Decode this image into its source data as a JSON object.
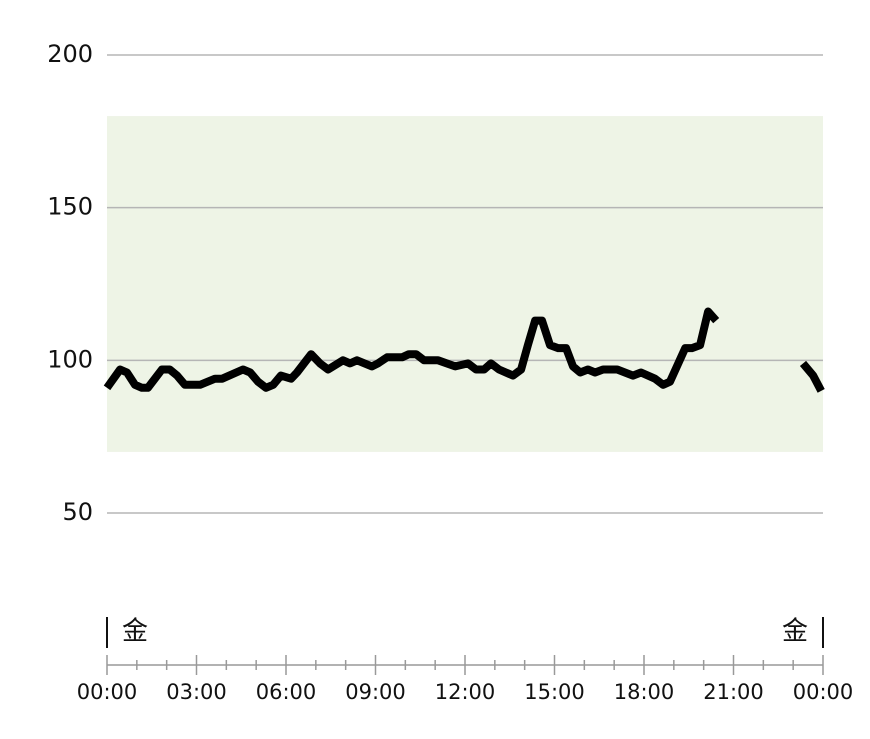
{
  "chart_data": {
    "type": "line",
    "x": [
      0,
      0.44,
      0.67,
      0.94,
      1.17,
      1.37,
      1.84,
      2.1,
      2.35,
      2.61,
      3.12,
      3.62,
      3.86,
      4.56,
      4.8,
      5.06,
      5.33,
      5.57,
      5.83,
      6.17,
      6.37,
      6.84,
      7.14,
      7.41,
      7.91,
      8.15,
      8.38,
      8.88,
      9.08,
      9.39,
      9.89,
      10.12,
      10.36,
      10.63,
      11.1,
      11.67,
      12.1,
      12.37,
      12.64,
      12.87,
      13.14,
      13.61,
      13.88,
      14.11,
      14.35,
      14.58,
      14.85,
      15.12,
      15.39,
      15.62,
      15.86,
      16.12,
      16.36,
      16.63,
      17.1,
      17.63,
      17.9,
      18.37,
      18.64,
      18.87,
      19.38,
      19.61,
      19.88,
      20.15,
      20.42,
      22,
      23.33,
      23.67,
      23.94
    ],
    "series": [
      {
        "color": "#000000",
        "values": [
          91,
          97,
          96,
          92,
          91,
          91,
          97,
          97,
          95,
          92,
          92,
          94,
          94,
          97,
          96,
          93,
          91,
          92,
          95,
          94,
          96,
          102,
          99,
          97,
          100,
          99,
          100,
          98,
          99,
          101,
          101,
          102,
          102,
          100,
          100,
          98,
          99,
          97,
          97,
          99,
          97,
          95,
          97,
          105,
          113,
          113,
          105,
          104,
          104,
          98,
          96,
          97,
          96,
          97,
          97,
          95,
          96,
          94,
          92,
          93,
          104,
          104,
          105,
          116,
          113,
          null,
          99,
          95,
          90
        ]
      }
    ],
    "xlim": [
      0,
      24
    ],
    "ylim": [
      50,
      200
    ],
    "yticks": [
      50,
      100,
      150,
      200
    ],
    "grid": true,
    "target_range": [
      70,
      180
    ],
    "target_color": "#eef4e6",
    "xticks": [
      {
        "value": 0,
        "label": "00:00"
      },
      {
        "value": 3,
        "label": "03:00"
      },
      {
        "value": 6,
        "label": "06:00"
      },
      {
        "value": 9,
        "label": "09:00"
      },
      {
        "value": 12,
        "label": "12:00"
      },
      {
        "value": 15,
        "label": "15:00"
      },
      {
        "value": 18,
        "label": "18:00"
      },
      {
        "value": 21,
        "label": "21:00"
      },
      {
        "value": 24,
        "label": "00:00"
      }
    ],
    "xminor": [
      1,
      2,
      4,
      5,
      7,
      8,
      10,
      11,
      13,
      14,
      16,
      17,
      19,
      20,
      22,
      23
    ],
    "day_labels": [
      {
        "value": 0,
        "label": "金"
      },
      {
        "value": 24,
        "label": "金"
      }
    ]
  }
}
